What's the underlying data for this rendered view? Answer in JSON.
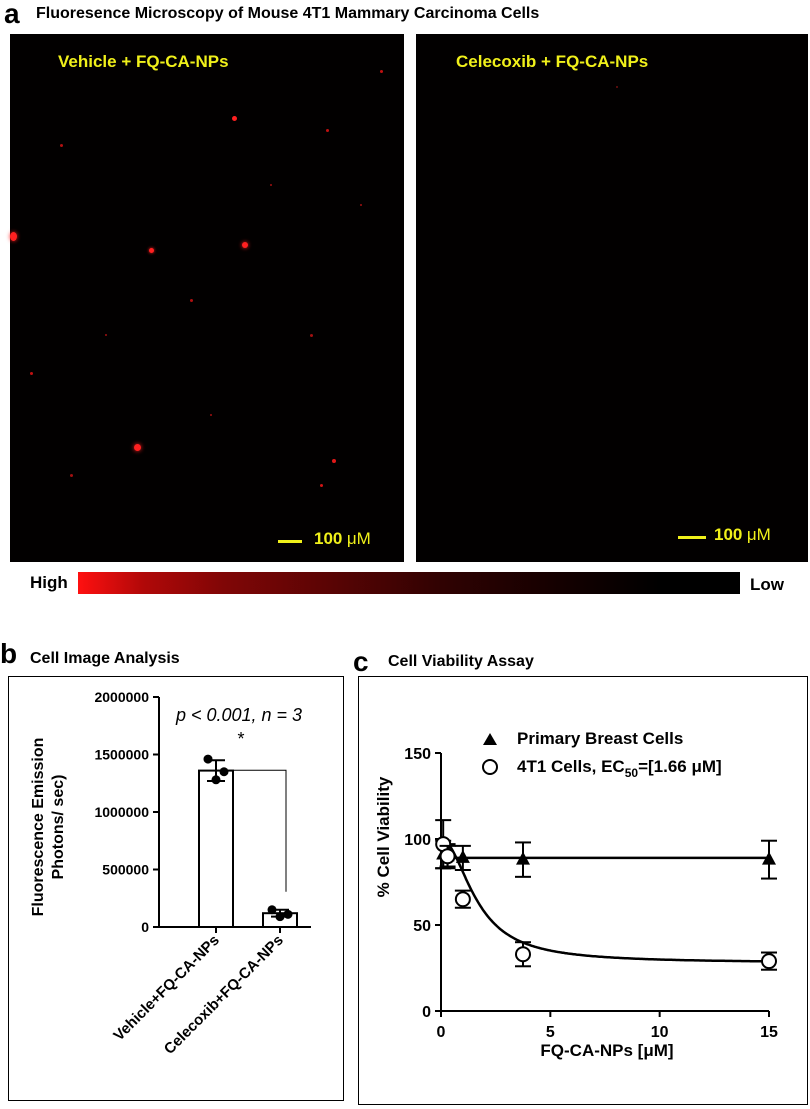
{
  "panel_a": {
    "letter": "a",
    "title": "Fluoresence Microscopy of Mouse 4T1 Mammary Carcinoma Cells",
    "left_label": "Vehicle +  FQ-CA-NPs",
    "right_label": "Celecoxib +  FQ-CA-NPs",
    "scale_value": "100",
    "scale_unit": "μM",
    "colorbar_high": "High",
    "colorbar_low": "Low",
    "colors": {
      "label": "#f0f01a",
      "signal": "#ff1a1a",
      "background": "#020000"
    }
  },
  "panel_b": {
    "letter": "b",
    "title": "Cell Image Analysis",
    "stat_text": "p < 0.001, n = 3",
    "star": "*",
    "chart_data": {
      "type": "bar",
      "categories": [
        "Vehicle+FQ-CA-NPs",
        "Celecoxib+FQ-CA-NPs"
      ],
      "values": [
        1360000,
        120000
      ],
      "errors": [
        90000,
        30000
      ],
      "points": [
        [
          1460000,
          1280000,
          1350000
        ],
        [
          150000,
          90000,
          110000
        ]
      ],
      "ylabel_lines": [
        "Fluorescence Emission",
        "Photons/ sec)"
      ],
      "ylim": [
        0,
        2000000
      ],
      "yticks": [
        0,
        500000,
        1000000,
        1500000,
        2000000
      ],
      "ytick_labels": [
        "0",
        "500000",
        "1000000",
        "1500000",
        "2000000"
      ]
    }
  },
  "panel_c": {
    "letter": "c",
    "title": "Cell Viability Assay",
    "legend": {
      "primary": "Primary Breast Cells",
      "t41_prefix": "4T1 Cells, EC",
      "t41_sub": "50",
      "t41_suffix": "=[1.66 μM]"
    },
    "chart_data": {
      "type": "scatter",
      "xlabel": "FQ-CA-NPs [μM]",
      "ylabel": "% Cell Viability",
      "xlim": [
        0,
        15
      ],
      "ylim": [
        0,
        150
      ],
      "xticks": [
        0,
        5,
        10,
        15
      ],
      "yticks": [
        0,
        50,
        100,
        150
      ],
      "series": [
        {
          "name": "Primary Breast Cells",
          "marker": "triangle",
          "x": [
            0.1,
            0.3,
            1.0,
            3.75,
            15
          ],
          "y": [
            91,
            90,
            89,
            88,
            88
          ],
          "err": [
            8,
            7,
            7,
            10,
            11
          ],
          "fit": {
            "kind": "flat",
            "value": 89
          }
        },
        {
          "name": "4T1 Cells",
          "marker": "circle",
          "x": [
            0.1,
            0.3,
            1.0,
            3.75,
            15
          ],
          "y": [
            97,
            90,
            65,
            33,
            29
          ],
          "err": [
            14,
            6,
            5,
            7,
            5
          ],
          "fit": {
            "kind": "sigmoid",
            "top": 100,
            "bottom": 28,
            "ec50": 1.66,
            "hill": 2
          }
        }
      ]
    }
  }
}
